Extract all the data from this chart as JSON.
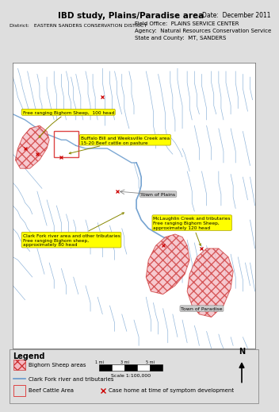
{
  "title": "IBD study, Plains/Paradise area",
  "date_text": "Date:  December 2011",
  "field_office": "Field Office:  PLAINS SERVICE CENTER",
  "agency": "Agency:  Natural Resources Conservation Service",
  "state_county": "State and County:  MT, SANDERS",
  "district": "District:   EASTERN SANDERS CONSERVATION DISTRICT",
  "river_color": "#6699cc",
  "sheep_area_fill": "#f5b8c0",
  "cattle_area_edge": "#dd4444",
  "case_home_color": "#cc0000",
  "annotation_bg": "#ffff00",
  "town_bg": "#cccccc",
  "legend_title": "Legend",
  "legend_sheep": "Bighorn Sheep areas",
  "legend_river": "Clark Fork river and tributaries",
  "legend_cattle": "Beef Cattle Area",
  "legend_case": "Case home at time of symptom development",
  "scale_text": "Scale 1:100,000"
}
